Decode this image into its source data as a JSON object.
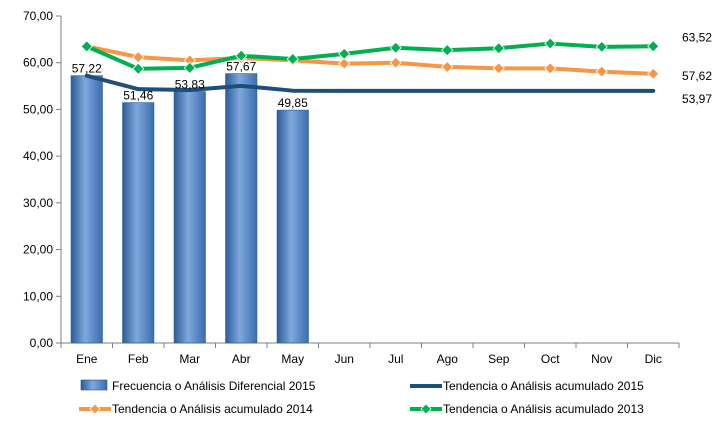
{
  "chart_data": {
    "type": "bar+line",
    "categories": [
      "Ene",
      "Feb",
      "Mar",
      "Abr",
      "May",
      "Jun",
      "Jul",
      "Ago",
      "Sep",
      "Oct",
      "Nov",
      "Dic"
    ],
    "ylim": [
      0,
      70
    ],
    "yticks": [
      "0,00",
      "10,00",
      "20,00",
      "30,00",
      "40,00",
      "50,00",
      "60,00",
      "70,00"
    ],
    "grid": false,
    "legend_position": "bottom",
    "series": [
      {
        "name": "Frecuencia o Análisis Diferencial 2015",
        "kind": "bar",
        "color": "#4f81bd",
        "values": [
          57.22,
          51.46,
          53.83,
          57.67,
          49.85,
          null,
          null,
          null,
          null,
          null,
          null,
          null
        ],
        "labels": [
          "57,22",
          "51,46",
          "53,83",
          "57,67",
          "49,85"
        ]
      },
      {
        "name": "Tendencia o Análisis acumulado 2015",
        "kind": "line",
        "color": "#1f4e79",
        "marker": "none",
        "values": [
          57.22,
          54.34,
          54.17,
          55.05,
          54.01,
          53.97,
          53.97,
          53.97,
          53.97,
          53.97,
          53.97,
          53.97
        ],
        "end_label": "53,97"
      },
      {
        "name": "Tendencia o Análisis acumulado 2014",
        "kind": "line",
        "color": "#f79646",
        "marker": "diamond",
        "values": [
          63.5,
          61.2,
          60.5,
          61.0,
          60.5,
          59.8,
          60.0,
          59.1,
          58.8,
          58.8,
          58.1,
          57.62
        ],
        "end_label": "57,62"
      },
      {
        "name": "Tendencia o Análisis acumulado 2013",
        "kind": "line",
        "color": "#00b050",
        "marker": "diamond",
        "values": [
          63.5,
          58.7,
          58.9,
          61.5,
          60.8,
          61.9,
          63.2,
          62.7,
          63.1,
          64.1,
          63.4,
          63.52
        ],
        "end_label": "63,52"
      }
    ]
  }
}
